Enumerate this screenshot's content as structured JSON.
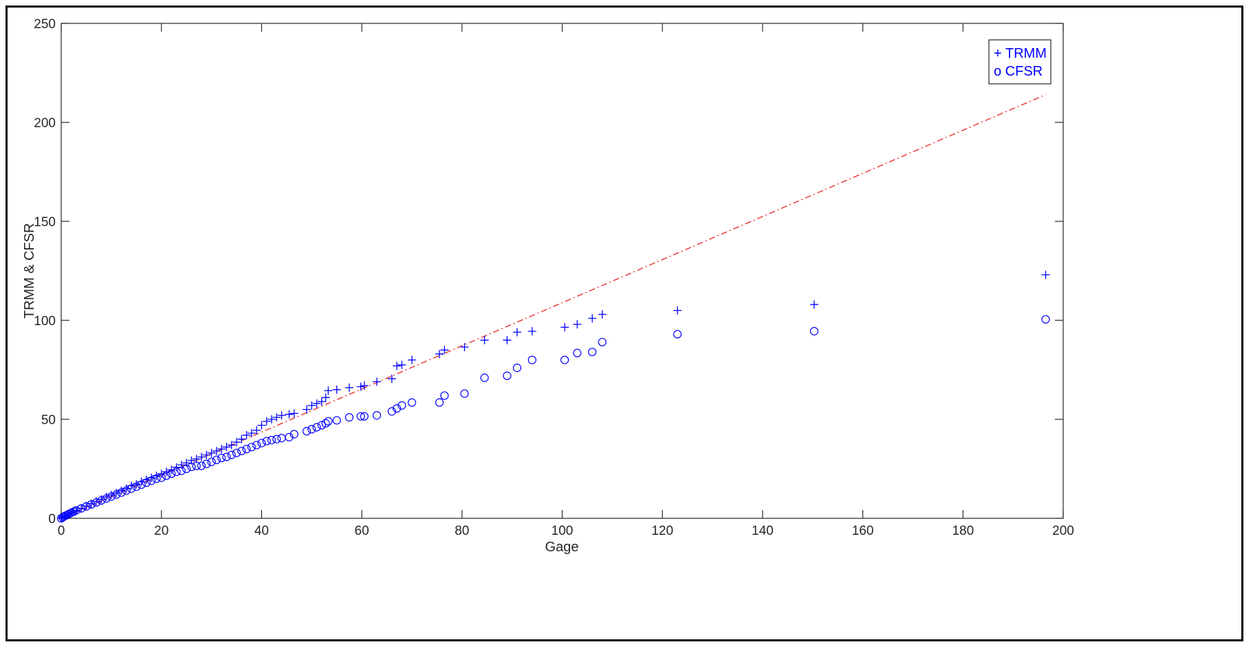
{
  "chart_data": {
    "type": "scatter",
    "title": "",
    "xlabel": "Gage",
    "ylabel": "TRMM & CFSR",
    "xlim": [
      0,
      200
    ],
    "ylim": [
      0,
      250
    ],
    "xticks": [
      "0",
      "20",
      "40",
      "60",
      "80",
      "100",
      "120",
      "140",
      "160",
      "180",
      "200"
    ],
    "yticks": [
      "0",
      "50",
      "100",
      "150",
      "200",
      "250"
    ],
    "grid": false,
    "legend": {
      "placement": "top-right",
      "entries": [
        "+ TRMM",
        "o CFSR"
      ]
    },
    "colors": {
      "series": "#0000ff",
      "reference_line": "#e8312a",
      "axes": "#262626"
    },
    "reference_line": {
      "style": "dash-dot",
      "x": [
        0,
        196.5
      ],
      "y": [
        0,
        214
      ]
    },
    "series": [
      {
        "name": "TRMM",
        "marker": "+",
        "x": [
          0,
          0.3,
          0.6,
          1,
          1.5,
          2,
          2.5,
          3,
          4,
          5,
          6,
          7,
          8,
          9,
          10,
          11,
          12,
          13,
          14,
          15,
          16,
          17,
          18,
          19,
          20,
          21,
          22,
          23,
          24,
          25,
          26,
          27,
          28,
          29,
          30,
          31,
          32,
          33,
          34,
          35,
          36,
          37,
          38,
          39,
          40,
          41,
          42,
          43,
          44,
          45.5,
          46.5,
          49,
          50,
          51,
          52,
          52.8,
          53.3,
          55,
          57.5,
          59.8,
          60.5,
          63,
          66,
          67,
          68,
          70,
          75.5,
          76.5,
          80.5,
          84.5,
          89,
          91,
          94,
          100.5,
          103,
          106,
          108,
          123,
          150.3,
          196.5
        ],
        "y": [
          0,
          0.5,
          1,
          1.5,
          2.2,
          2.8,
          3.4,
          4,
          5,
          6.2,
          7.4,
          8.5,
          9.6,
          10.8,
          11.8,
          12.8,
          14,
          15,
          16.5,
          17.2,
          18.5,
          19.5,
          20.5,
          21.5,
          22.5,
          23.5,
          24.5,
          25.8,
          27,
          28,
          29.2,
          30,
          31,
          32,
          33,
          34,
          35,
          36,
          37,
          38.5,
          40,
          42,
          43,
          44.5,
          47,
          49,
          50,
          51,
          52,
          52.5,
          53,
          55,
          57,
          58,
          59,
          61,
          64.5,
          65,
          66,
          66.5,
          67,
          69,
          70.5,
          77,
          77.5,
          80,
          83,
          85,
          86.5,
          90,
          90,
          94,
          94.5,
          96.5,
          98,
          101,
          103,
          105,
          108,
          123
        ]
      },
      {
        "name": "CFSR",
        "marker": "o",
        "x": [
          0,
          0.3,
          0.6,
          1,
          1.5,
          2,
          2.5,
          3,
          4,
          5,
          6,
          7,
          8,
          9,
          10,
          11,
          12,
          13,
          14,
          15,
          16,
          17,
          18,
          19,
          20,
          21,
          22,
          23,
          24,
          25,
          26,
          27,
          28,
          29,
          30,
          31,
          32,
          33,
          34,
          35,
          36,
          37,
          38,
          39,
          40,
          41,
          42,
          43,
          44,
          45.5,
          46.5,
          49,
          50,
          51,
          52,
          52.8,
          53.3,
          55,
          57.5,
          59.8,
          60.5,
          63,
          66,
          67,
          68,
          70,
          75.5,
          76.5,
          80.5,
          84.5,
          89,
          91,
          94,
          100.5,
          103,
          106,
          108,
          123,
          150.3,
          196.5
        ],
        "y": [
          0,
          0.5,
          1,
          1.5,
          2.2,
          2.8,
          3.4,
          4,
          5,
          6,
          7,
          8,
          9,
          10,
          11,
          12,
          13,
          14,
          15,
          16,
          17,
          18,
          19,
          20,
          20.5,
          21.5,
          22.5,
          23.5,
          24,
          25,
          26,
          26.5,
          26.5,
          27.5,
          28.5,
          29.5,
          30.5,
          31,
          32,
          33,
          34,
          35,
          36,
          37,
          38,
          39,
          39.5,
          40,
          40.5,
          41,
          42.5,
          44,
          45,
          46,
          47,
          48,
          49,
          49.5,
          51,
          51.5,
          51.5,
          52,
          54,
          55.5,
          57,
          58.5,
          58.5,
          62,
          63,
          71,
          72,
          76,
          80,
          80,
          83.5,
          84,
          89,
          93,
          94.5,
          100.5
        ]
      }
    ]
  }
}
